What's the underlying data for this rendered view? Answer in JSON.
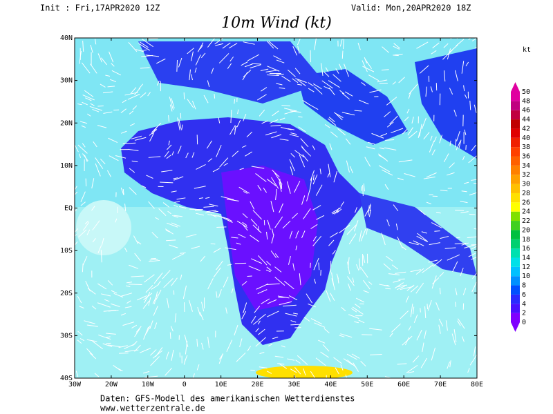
{
  "header": {
    "init": "Init : Fri,17APR2020 12Z",
    "valid": "Valid: Mon,20APR2020 18Z",
    "title": "10m Wind (kt)"
  },
  "map": {
    "lat_labels": [
      "40N",
      "30N",
      "20N",
      "10N",
      "EQ",
      "10S",
      "20S",
      "30S",
      "40S"
    ],
    "lon_labels": [
      "30W",
      "20W",
      "10W",
      "0",
      "10E",
      "20E",
      "30E",
      "40E",
      "50E",
      "60E",
      "70E",
      "80E"
    ]
  },
  "legend": {
    "unit": "kt",
    "levels": [
      "0",
      "2",
      "4",
      "6",
      "8",
      "10",
      "12",
      "14",
      "16",
      "18",
      "20",
      "22",
      "24",
      "26",
      "28",
      "30",
      "32",
      "34",
      "36",
      "38",
      "40",
      "42",
      "44",
      "46",
      "48",
      "50"
    ],
    "colors": [
      "#8000ff",
      "#4a10ff",
      "#2a2aff",
      "#0050ff",
      "#0090ff",
      "#00c0ff",
      "#00e0e8",
      "#00e0b0",
      "#00d070",
      "#00c040",
      "#40d020",
      "#80e000",
      "#ffff00",
      "#ffe000",
      "#ffc000",
      "#ffa000",
      "#ff8000",
      "#ff6000",
      "#ff4000",
      "#f02000",
      "#e00000",
      "#c00000",
      "#c00040",
      "#c00080",
      "#e000a0"
    ]
  },
  "footer": {
    "line1": "Daten: GFS-Modell des amerikanischen Wetterdienstes",
    "line2": "www.wetterzentrale.de"
  }
}
